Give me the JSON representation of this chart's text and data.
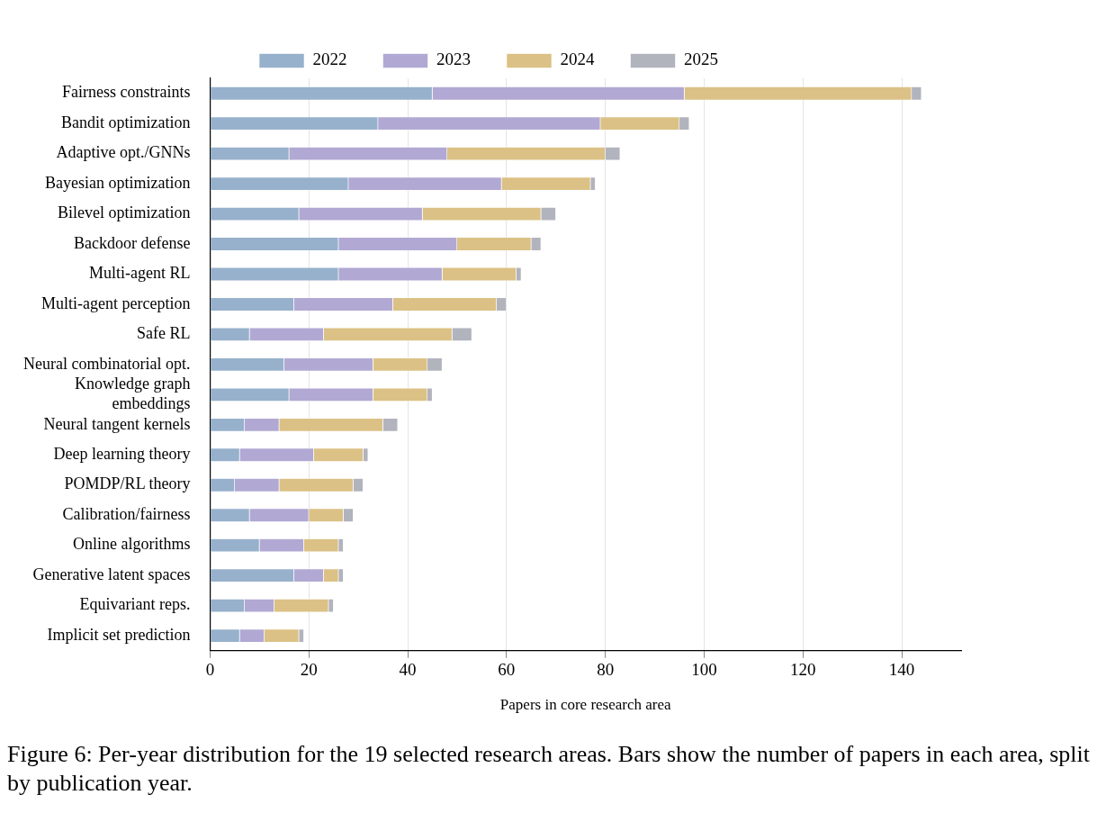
{
  "chart_data": {
    "type": "bar",
    "orientation": "horizontal",
    "stacked": true,
    "categories": [
      "Fairness constraints",
      "Bandit optimization",
      "Adaptive opt./GNNs",
      "Bayesian optimization",
      "Bilevel optimization",
      "Backdoor defense",
      "Multi-agent RL",
      "Multi-agent perception",
      "Safe RL",
      "Neural combinatorial opt.",
      "Knowledge graph embeddings",
      "Neural tangent kernels",
      "Deep learning theory",
      "POMDP/RL theory",
      "Calibration/fairness",
      "Online algorithms",
      "Generative latent spaces",
      "Equivariant reps.",
      "Implicit set prediction"
    ],
    "series": [
      {
        "name": "2022",
        "color": "#97b1cc",
        "values": [
          45,
          34,
          16,
          28,
          18,
          26,
          26,
          17,
          8,
          15,
          16,
          7,
          6,
          5,
          8,
          10,
          17,
          7,
          6
        ]
      },
      {
        "name": "2023",
        "color": "#b1a9d3",
        "values": [
          51,
          45,
          32,
          31,
          25,
          24,
          21,
          20,
          15,
          18,
          17,
          7,
          15,
          9,
          12,
          9,
          6,
          6,
          5
        ]
      },
      {
        "name": "2024",
        "color": "#dbc185",
        "values": [
          46,
          16,
          32,
          18,
          24,
          15,
          15,
          21,
          26,
          11,
          11,
          21,
          10,
          15,
          7,
          7,
          3,
          11,
          7
        ]
      },
      {
        "name": "2025",
        "color": "#b1b3bd",
        "values": [
          2,
          2,
          3,
          1,
          3,
          2,
          1,
          2,
          4,
          3,
          1,
          3,
          1,
          2,
          2,
          1,
          1,
          1,
          1
        ]
      }
    ],
    "xlabel": "Papers in core research area",
    "xlim": [
      0,
      152
    ],
    "xticks": [
      0,
      20,
      40,
      60,
      80,
      100,
      120,
      140
    ],
    "grid": "x",
    "legend": "top",
    "annotations": [
      "Figure 6: Per-year distribution for the 19 selected research areas. Bars show the number of papers in each area, split by publication year."
    ]
  }
}
